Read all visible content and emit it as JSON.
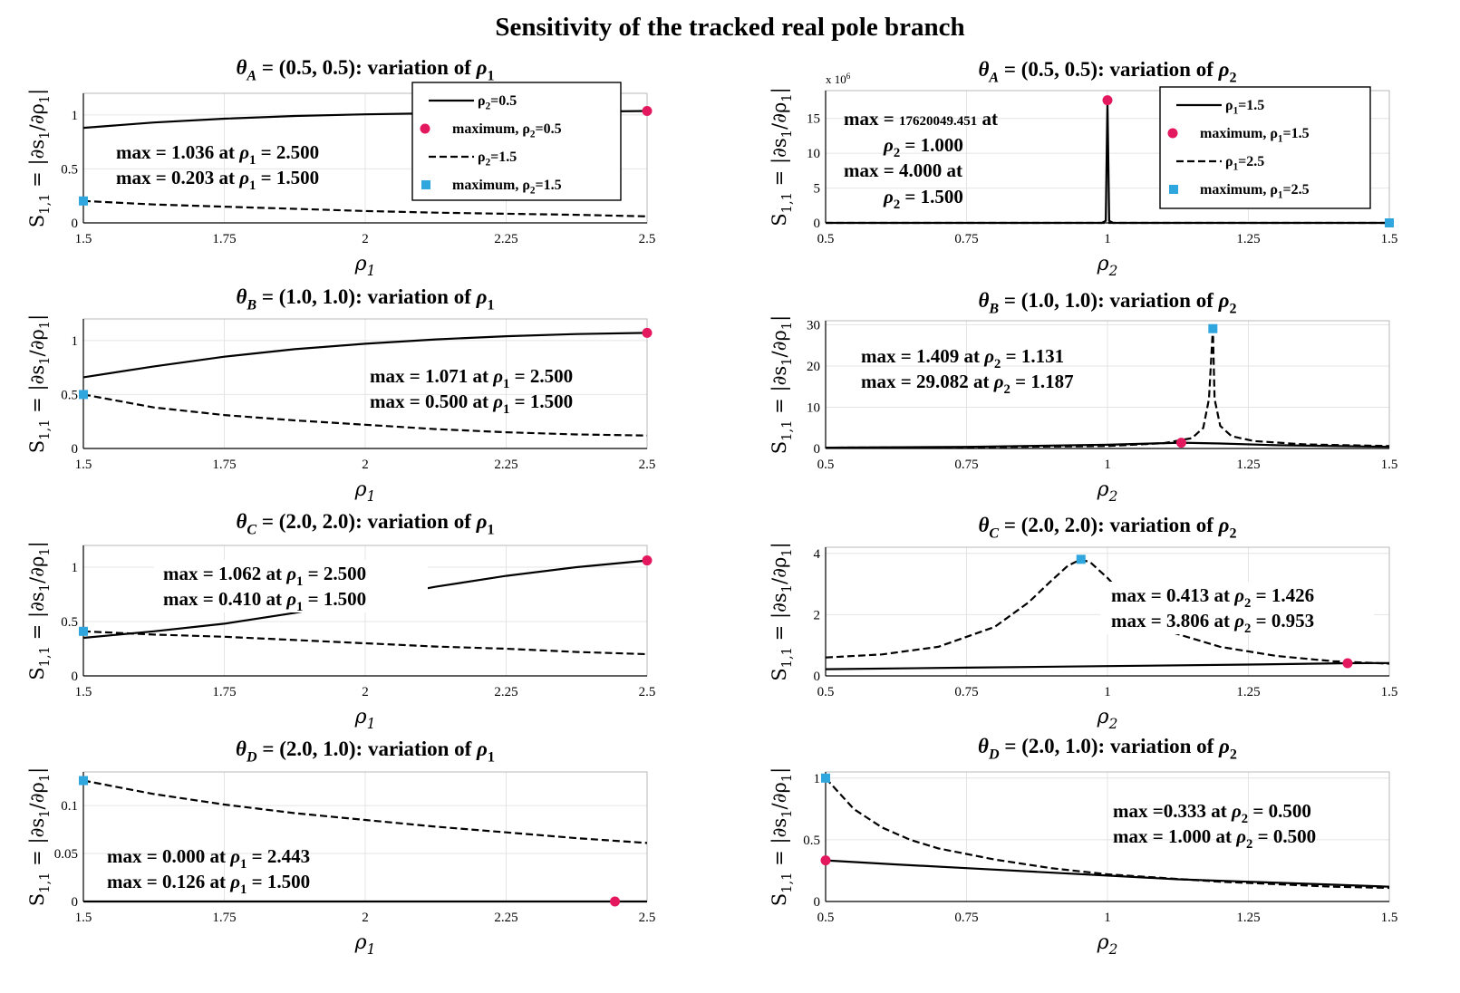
{
  "title": "Sensitivity of the tracked real pole branch",
  "colors": {
    "curve": "#000000",
    "max_circle": "#e3185e",
    "max_square": "#2fa6de",
    "grid": "#e4e4e4",
    "axis": "#000000"
  },
  "ylabel_html": "S<sub>1,1</sub> = |∂s<sub>1</sub>/∂ρ<sub>1</sub>|",
  "chart_data": [
    {
      "type": "line",
      "title_html": "θ<sub>A</sub> = (0.5, 0.5): variation of ρ<sub>1</sub>",
      "xlabel_html": "ρ<sub>1</sub>",
      "xlim": [
        1.5,
        2.5
      ],
      "ylim": [
        0,
        1.2
      ],
      "xticks": [
        1.5,
        1.75,
        2,
        2.25,
        2.5
      ],
      "xtick_labels": [
        "1.5",
        "1.75",
        "2",
        "2.25",
        "2.5"
      ],
      "yticks": [
        0,
        0.5,
        1
      ],
      "ytick_labels": [
        "0",
        "0.5",
        "1"
      ],
      "series": [
        {
          "name_html": "ρ<sub>2</sub>=0.5",
          "style": "solid",
          "x": [
            1.5,
            1.625,
            1.75,
            1.875,
            2.0,
            2.125,
            2.25,
            2.375,
            2.5
          ],
          "y": [
            0.88,
            0.93,
            0.965,
            0.99,
            1.005,
            1.015,
            1.025,
            1.03,
            1.036
          ]
        },
        {
          "name_html": "ρ<sub>2</sub>=1.5",
          "style": "dashed",
          "x": [
            1.5,
            1.625,
            1.75,
            1.875,
            2.0,
            2.125,
            2.25,
            2.375,
            2.5
          ],
          "y": [
            0.203,
            0.17,
            0.15,
            0.13,
            0.11,
            0.095,
            0.085,
            0.075,
            0.06
          ]
        }
      ],
      "maxima": [
        {
          "marker": "circle",
          "x": 2.5,
          "y": 1.036,
          "legend_html": "maximum,  ρ<sub>2</sub>=0.5"
        },
        {
          "marker": "square",
          "x": 1.5,
          "y": 0.203,
          "legend_html": "maximum, ρ<sub>2</sub>=1.5"
        }
      ],
      "annotations_html": [
        "max = 1.036 at <i>ρ</i><sub>1</sub> = 2.500",
        "max = 0.203 at <i>ρ</i><sub>1</sub> = 1.500"
      ],
      "legend": true
    },
    {
      "type": "line",
      "title_html": "θ<sub>A</sub> = (0.5, 0.5): variation of ρ<sub>2</sub>",
      "xlabel_html": "ρ<sub>2</sub>",
      "xlim": [
        0.5,
        1.5
      ],
      "ylim": [
        0,
        19
      ],
      "y_exponent_html": "x 10<sup>6</sup>",
      "xticks": [
        0.5,
        0.75,
        1,
        1.25,
        1.5
      ],
      "xtick_labels": [
        "0.5",
        "0.75",
        "1",
        "1.25",
        "1.5"
      ],
      "yticks": [
        0,
        5,
        10,
        15
      ],
      "ytick_labels": [
        "0",
        "5",
        "10",
        "15"
      ],
      "series": [
        {
          "name_html": "ρ<sub>1</sub>=1.5",
          "style": "solid",
          "x": [
            0.5,
            0.99,
            0.997,
            1.0,
            1.003,
            1.01,
            1.5
          ],
          "y": [
            0,
            0,
            0.3,
            17.62,
            0.3,
            0,
            0
          ]
        },
        {
          "name_html": "ρ<sub>1</sub>=2.5",
          "style": "dashed",
          "x": [
            0.5,
            1.0,
            1.5
          ],
          "y": [
            0,
            0,
            0
          ]
        }
      ],
      "maxima": [
        {
          "marker": "circle",
          "x": 1.0,
          "y": 17.62,
          "legend_html": "maximum,  ρ<sub>1</sub>=1.5"
        },
        {
          "marker": "square",
          "x": 1.5,
          "y": 0.0,
          "legend_html": "maximum, ρ<sub>1</sub>=2.5"
        }
      ],
      "annotations_html": [
        "max = <tspan font-size=\"15\">17620049.451</tspan> at",
        "<i>ρ</i><sub>2</sub> = 1.000",
        "max = 4.000 at",
        "<i>ρ</i><sub>2</sub> = 1.500"
      ],
      "legend": true
    },
    {
      "type": "line",
      "title_html": "θ<sub>B</sub> = (1.0, 1.0): variation of ρ<sub>1</sub>",
      "xlabel_html": "ρ<sub>1</sub>",
      "xlim": [
        1.5,
        2.5
      ],
      "ylim": [
        0,
        1.2
      ],
      "xticks": [
        1.5,
        1.75,
        2,
        2.25,
        2.5
      ],
      "xtick_labels": [
        "1.5",
        "1.75",
        "2",
        "2.25",
        "2.5"
      ],
      "yticks": [
        0,
        0.5,
        1
      ],
      "ytick_labels": [
        "0",
        "0.5",
        "1"
      ],
      "series": [
        {
          "name_html": "",
          "style": "solid",
          "x": [
            1.5,
            1.625,
            1.75,
            1.875,
            2.0,
            2.125,
            2.25,
            2.375,
            2.5
          ],
          "y": [
            0.66,
            0.76,
            0.85,
            0.92,
            0.97,
            1.01,
            1.04,
            1.06,
            1.071
          ]
        },
        {
          "name_html": "",
          "style": "dashed",
          "x": [
            1.5,
            1.625,
            1.75,
            1.875,
            2.0,
            2.125,
            2.25,
            2.375,
            2.5
          ],
          "y": [
            0.5,
            0.38,
            0.31,
            0.26,
            0.22,
            0.18,
            0.15,
            0.13,
            0.12
          ]
        }
      ],
      "maxima": [
        {
          "marker": "circle",
          "x": 2.5,
          "y": 1.071
        },
        {
          "marker": "square",
          "x": 1.5,
          "y": 0.5
        }
      ],
      "annotations_html": [
        "max = 1.071 at <i>ρ</i><sub>1</sub> = 2.500",
        "max = 0.500 at <i>ρ</i><sub>1</sub> = 1.500"
      ],
      "legend": false
    },
    {
      "type": "line",
      "title_html": "θ<sub>B</sub> = (1.0, 1.0): variation of ρ<sub>2</sub>",
      "xlabel_html": "ρ<sub>2</sub>",
      "xlim": [
        0.5,
        1.5
      ],
      "ylim": [
        0,
        31
      ],
      "xticks": [
        0.5,
        0.75,
        1,
        1.25,
        1.5
      ],
      "xtick_labels": [
        "0.5",
        "0.75",
        "1",
        "1.25",
        "1.5"
      ],
      "yticks": [
        0,
        10,
        20,
        30
      ],
      "ytick_labels": [
        "0",
        "10",
        "20",
        "30"
      ],
      "series": [
        {
          "name_html": "",
          "style": "solid",
          "x": [
            0.5,
            0.75,
            1.0,
            1.1,
            1.131,
            1.2,
            1.3,
            1.5
          ],
          "y": [
            0.2,
            0.4,
            0.9,
            1.3,
            1.409,
            1.2,
            0.8,
            0.4
          ]
        },
        {
          "name_html": "",
          "style": "dashed",
          "x": [
            0.5,
            0.75,
            1.0,
            1.1,
            1.15,
            1.17,
            1.18,
            1.187,
            1.19,
            1.2,
            1.22,
            1.26,
            1.35,
            1.5
          ],
          "y": [
            0.2,
            0.3,
            0.6,
            1.3,
            2.5,
            5.0,
            12.0,
            29.082,
            12.0,
            5.5,
            3.0,
            1.8,
            1.0,
            0.6
          ]
        }
      ],
      "maxima": [
        {
          "marker": "circle",
          "x": 1.131,
          "y": 1.409
        },
        {
          "marker": "square",
          "x": 1.187,
          "y": 29.082
        }
      ],
      "annotations_html": [
        "max = 1.409 at <i>ρ</i><sub>2</sub> = 1.131",
        "max = 29.082 at <i>ρ</i><sub>2</sub> = 1.187"
      ],
      "legend": false
    },
    {
      "type": "line",
      "title_html": "θ<sub>C</sub> = (2.0, 2.0): variation of ρ<sub>1</sub>",
      "xlabel_html": "ρ<sub>1</sub>",
      "xlim": [
        1.5,
        2.5
      ],
      "ylim": [
        0,
        1.2
      ],
      "xticks": [
        1.5,
        1.75,
        2,
        2.25,
        2.5
      ],
      "xtick_labels": [
        "1.5",
        "1.75",
        "2",
        "2.25",
        "2.5"
      ],
      "yticks": [
        0,
        0.5,
        1
      ],
      "ytick_labels": [
        "0",
        "0.5",
        "1"
      ],
      "series": [
        {
          "name_html": "",
          "style": "solid",
          "x": [
            1.5,
            1.625,
            1.75,
            1.875,
            2.0,
            2.125,
            2.25,
            2.375,
            2.5
          ],
          "y": [
            0.35,
            0.41,
            0.48,
            0.58,
            0.7,
            0.82,
            0.92,
            1.0,
            1.062
          ]
        },
        {
          "name_html": "",
          "style": "dashed",
          "x": [
            1.5,
            1.625,
            1.75,
            1.875,
            2.0,
            2.125,
            2.25,
            2.375,
            2.5
          ],
          "y": [
            0.41,
            0.38,
            0.36,
            0.33,
            0.3,
            0.27,
            0.25,
            0.22,
            0.2
          ]
        }
      ],
      "maxima": [
        {
          "marker": "circle",
          "x": 2.5,
          "y": 1.062
        },
        {
          "marker": "square",
          "x": 1.5,
          "y": 0.41
        }
      ],
      "annotations_html": [
        "max = 1.062 at <i>ρ</i><sub>1</sub> = 2.500",
        "max = 0.410 at <i>ρ</i><sub>1</sub> = 1.500"
      ],
      "legend": false
    },
    {
      "type": "line",
      "title_html": "θ<sub>C</sub> = (2.0, 2.0): variation of ρ<sub>2</sub>",
      "xlabel_html": "ρ<sub>2</sub>",
      "xlim": [
        0.5,
        1.5
      ],
      "ylim": [
        0,
        4.2
      ],
      "xticks": [
        0.5,
        0.75,
        1,
        1.25,
        1.5
      ],
      "xtick_labels": [
        "0.5",
        "0.75",
        "1",
        "1.25",
        "1.5"
      ],
      "yticks": [
        0,
        2,
        4
      ],
      "ytick_labels": [
        "0",
        "2",
        "4"
      ],
      "series": [
        {
          "name_html": "",
          "style": "solid",
          "x": [
            0.5,
            0.75,
            1.0,
            1.25,
            1.426,
            1.5
          ],
          "y": [
            0.22,
            0.27,
            0.32,
            0.37,
            0.413,
            0.42
          ]
        },
        {
          "name_html": "",
          "style": "dashed",
          "x": [
            0.5,
            0.6,
            0.7,
            0.8,
            0.86,
            0.9,
            0.93,
            0.953,
            0.97,
            1.0,
            1.05,
            1.1,
            1.2,
            1.3,
            1.4,
            1.5
          ],
          "y": [
            0.6,
            0.7,
            0.95,
            1.6,
            2.4,
            3.1,
            3.6,
            3.806,
            3.7,
            3.2,
            2.2,
            1.5,
            0.95,
            0.65,
            0.48,
            0.4
          ]
        }
      ],
      "maxima": [
        {
          "marker": "circle",
          "x": 1.426,
          "y": 0.413
        },
        {
          "marker": "square",
          "x": 0.953,
          "y": 3.806
        }
      ],
      "annotations_html": [
        "max = 0.413 at <i>ρ</i><sub>2</sub> = 1.426",
        "max = 3.806 at <i>ρ</i><sub>2</sub> = 0.953"
      ],
      "legend": false
    },
    {
      "type": "line",
      "title_html": "θ<sub>D</sub> = (2.0, 1.0): variation of ρ<sub>1</sub>",
      "xlabel_html": "ρ<sub>1</sub>",
      "xlim": [
        1.5,
        2.5
      ],
      "ylim": [
        0,
        0.135
      ],
      "xticks": [
        1.5,
        1.75,
        2,
        2.25,
        2.5
      ],
      "xtick_labels": [
        "1.5",
        "1.75",
        "2",
        "2.25",
        "2.5"
      ],
      "yticks": [
        0,
        0.05,
        0.1
      ],
      "ytick_labels": [
        "0",
        "0.05",
        "0.1"
      ],
      "series": [
        {
          "name_html": "",
          "style": "solid",
          "x": [
            1.5,
            2.0,
            2.443,
            2.5
          ],
          "y": [
            0.0,
            0.0,
            0.0,
            0.0
          ]
        },
        {
          "name_html": "",
          "style": "dashed",
          "x": [
            1.5,
            1.625,
            1.75,
            1.875,
            2.0,
            2.125,
            2.25,
            2.375,
            2.5
          ],
          "y": [
            0.126,
            0.112,
            0.101,
            0.092,
            0.085,
            0.078,
            0.072,
            0.066,
            0.061
          ]
        }
      ],
      "maxima": [
        {
          "marker": "circle",
          "x": 2.443,
          "y": 0.0
        },
        {
          "marker": "square",
          "x": 1.5,
          "y": 0.126
        }
      ],
      "annotations_html": [
        "max = 0.000 at <i>ρ</i><sub>1</sub> = 2.443",
        "max = 0.126 at <i>ρ</i><sub>1</sub> = 1.500"
      ],
      "legend": false
    },
    {
      "type": "line",
      "title_html": "θ<sub>D</sub> = (2.0, 1.0): variation of ρ<sub>2</sub>",
      "xlabel_html": "ρ<sub>2</sub>",
      "xlim": [
        0.5,
        1.5
      ],
      "ylim": [
        0,
        1.05
      ],
      "xticks": [
        0.5,
        0.75,
        1,
        1.25,
        1.5
      ],
      "xtick_labels": [
        "0.5",
        "0.75",
        "1",
        "1.25",
        "1.5"
      ],
      "yticks": [
        0,
        0.5,
        1
      ],
      "ytick_labels": [
        "0",
        "0.5",
        "1"
      ],
      "series": [
        {
          "name_html": "",
          "style": "solid",
          "x": [
            0.5,
            0.625,
            0.75,
            0.875,
            1.0,
            1.125,
            1.25,
            1.375,
            1.5
          ],
          "y": [
            0.333,
            0.3,
            0.27,
            0.24,
            0.21,
            0.18,
            0.16,
            0.14,
            0.12
          ]
        },
        {
          "name_html": "",
          "style": "dashed",
          "x": [
            0.5,
            0.55,
            0.6,
            0.65,
            0.7,
            0.8,
            0.9,
            1.0,
            1.1,
            1.2,
            1.3,
            1.4,
            1.5
          ],
          "y": [
            1.0,
            0.75,
            0.6,
            0.5,
            0.43,
            0.34,
            0.27,
            0.22,
            0.19,
            0.16,
            0.14,
            0.12,
            0.11
          ]
        }
      ],
      "maxima": [
        {
          "marker": "circle",
          "x": 0.5,
          "y": 0.333
        },
        {
          "marker": "square",
          "x": 0.5,
          "y": 1.0
        }
      ],
      "annotations_html": [
        "max =0.333 at <i>ρ</i><sub>2</sub> = 0.500",
        "max = 1.000 at <i>ρ</i><sub>2</sub> = 0.500"
      ],
      "legend": false
    }
  ]
}
